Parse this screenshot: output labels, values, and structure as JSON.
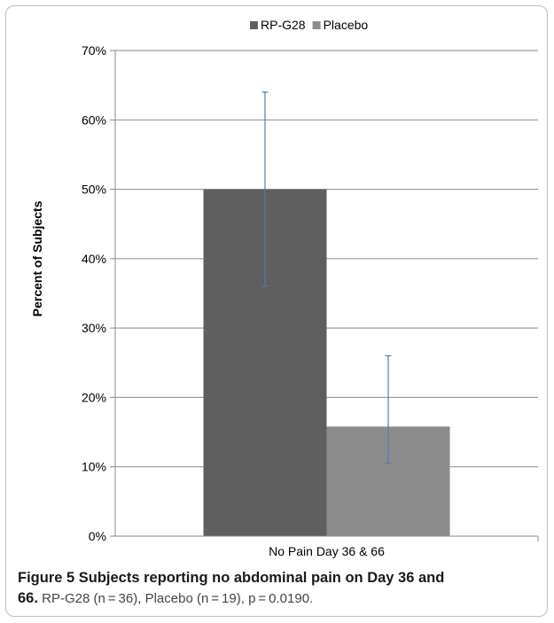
{
  "chart_data": {
    "type": "bar",
    "categories": [
      "No Pain Day 36 & 66"
    ],
    "series": [
      {
        "name": "RP-G28",
        "values": [
          50
        ],
        "error": [
          [
            36,
            64
          ]
        ],
        "color": "#5f5f5f"
      },
      {
        "name": "Placebo",
        "values": [
          15.8
        ],
        "error": [
          [
            10.5,
            26
          ]
        ],
        "color": "#8c8c8c"
      }
    ],
    "ylabel": "Percent of Subjects",
    "xlabel": "",
    "ylim": [
      0,
      70
    ],
    "yticks": [
      0,
      10,
      20,
      30,
      40,
      50,
      60,
      70
    ],
    "ytick_labels": [
      "0%",
      "10%",
      "20%",
      "30%",
      "40%",
      "50%",
      "60%",
      "70%"
    ],
    "grid": true,
    "legend_position": "top",
    "error_bar_color": "#4a7fb5"
  },
  "caption": {
    "title_line1": "Figure 5 Subjects reporting no abdominal pain on Day 36 and",
    "title_line2_bold": "66.",
    "title_line2_rest": " RP-G28 (n = 36), Placebo (n = 19), p = 0.0190."
  }
}
